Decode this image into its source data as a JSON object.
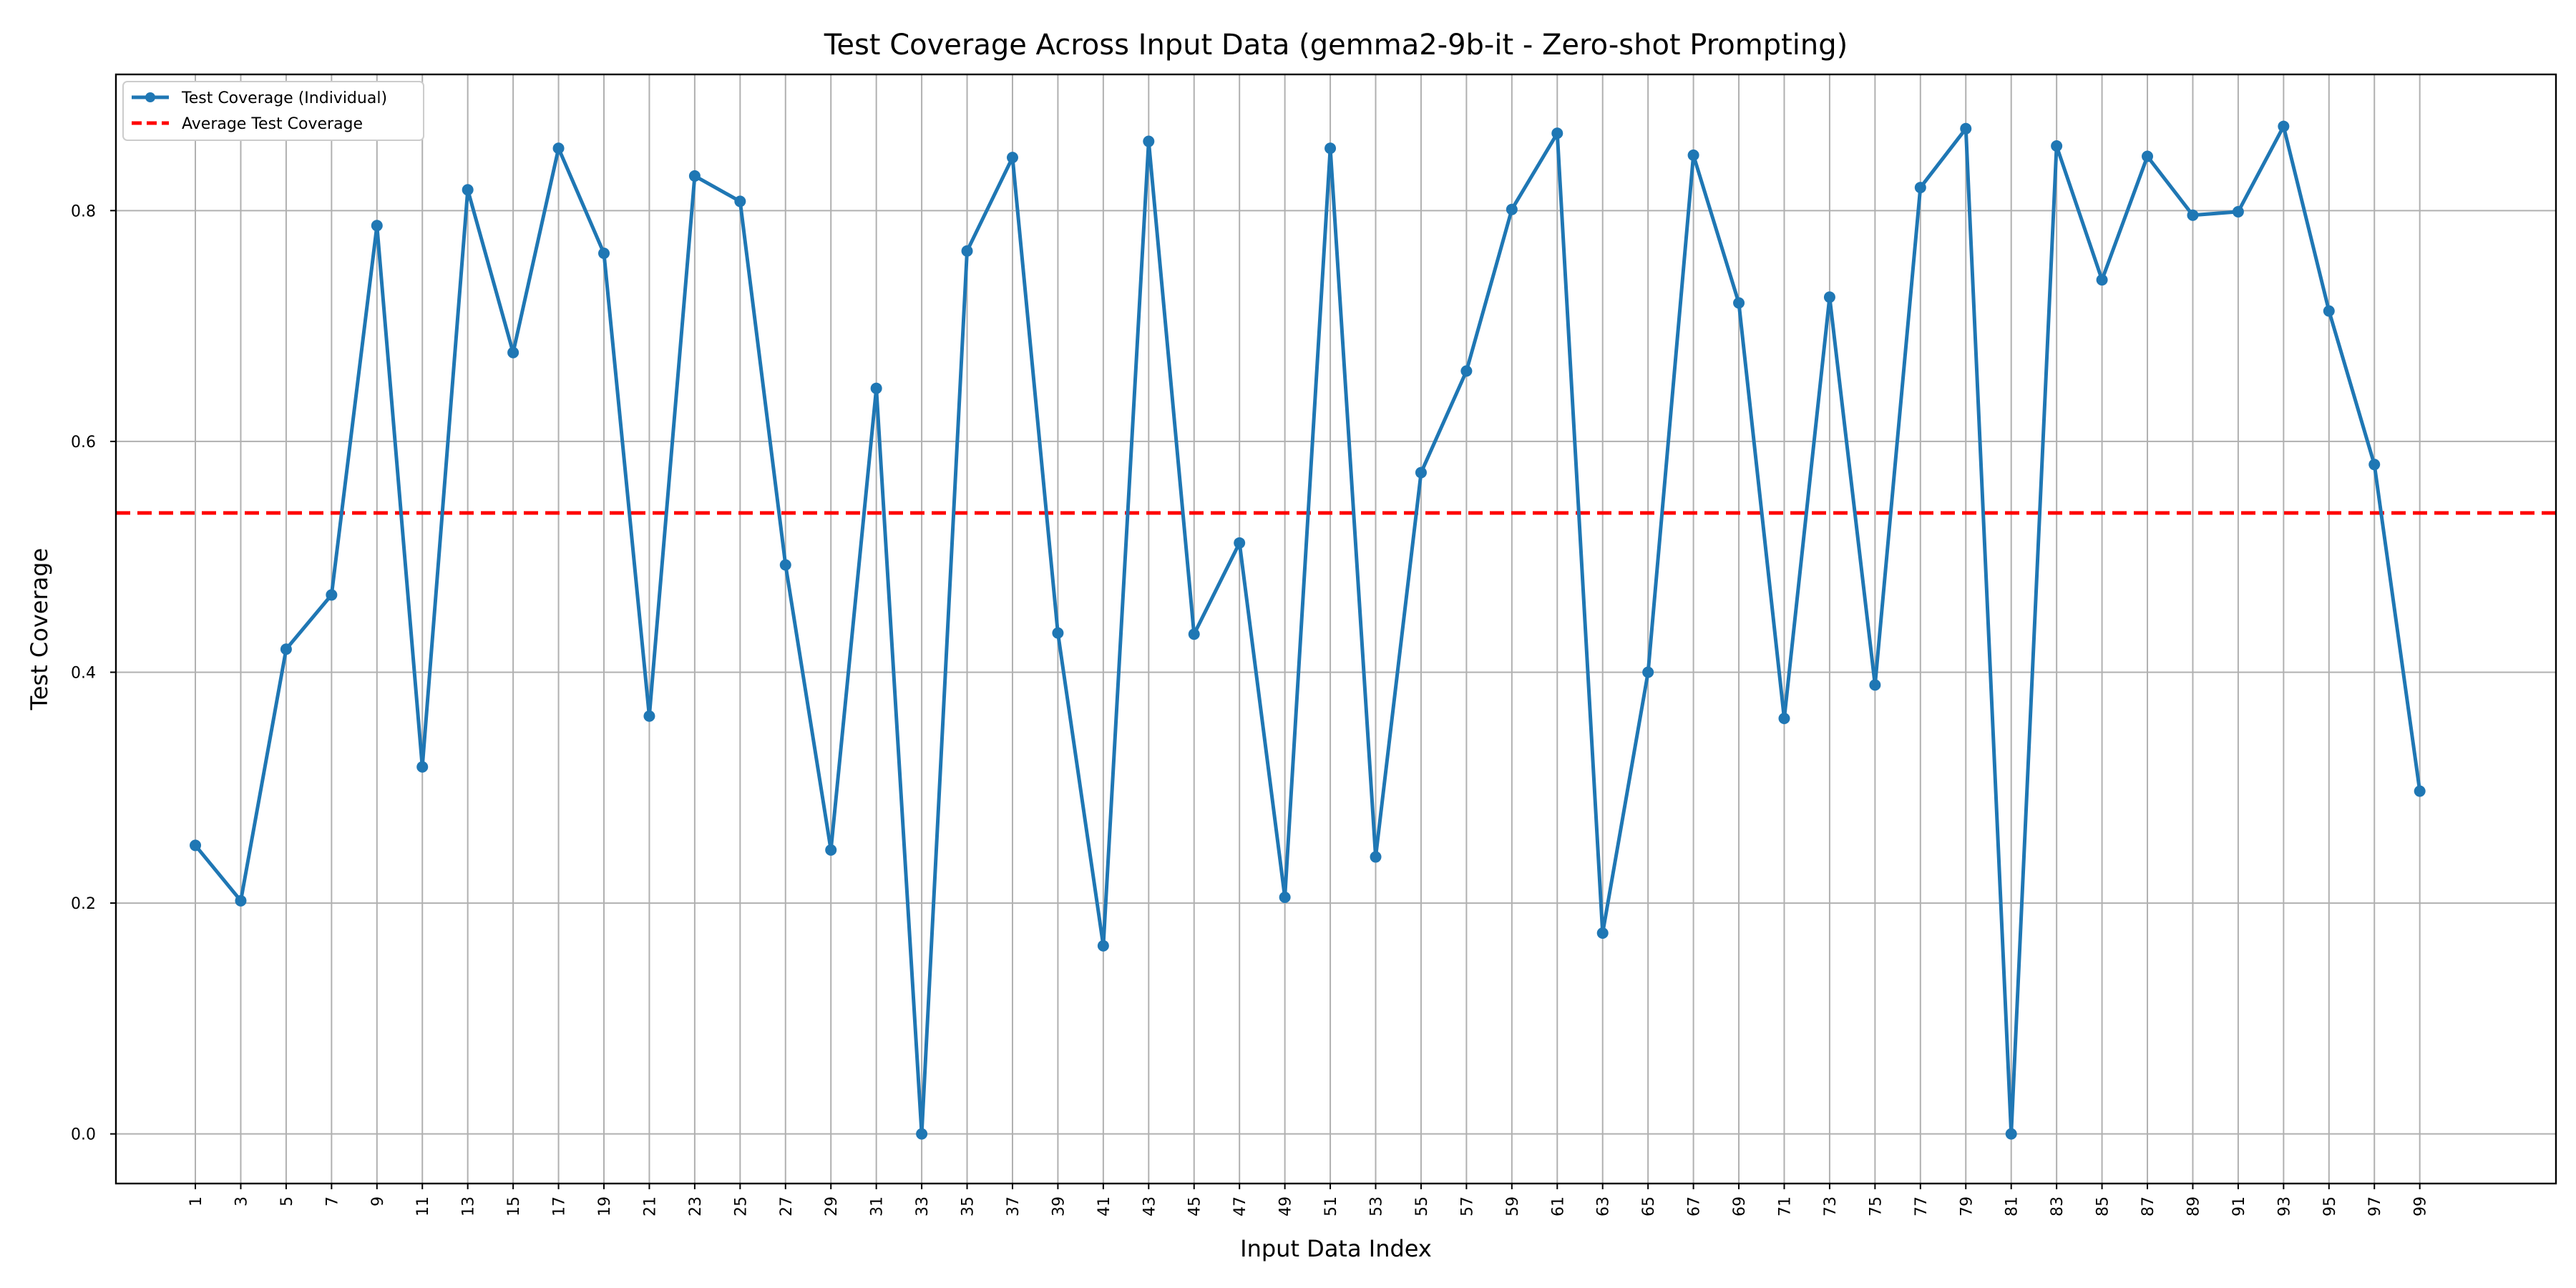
{
  "chart_data": {
    "type": "line",
    "title": "Test Coverage Across Input Data (gemma2-9b-it - Zero-shot Prompting)",
    "xlabel": "Input Data Index",
    "ylabel": "Test Coverage",
    "xlim": [
      -2.5,
      105
    ],
    "ylim": [
      -0.043,
      0.918
    ],
    "x_ticks": [
      1,
      3,
      5,
      7,
      9,
      11,
      13,
      15,
      17,
      19,
      21,
      23,
      25,
      27,
      29,
      31,
      33,
      35,
      37,
      39,
      41,
      43,
      45,
      47,
      49,
      51,
      53,
      55,
      57,
      59,
      61,
      63,
      65,
      67,
      69,
      71,
      73,
      75,
      77,
      79,
      81,
      83,
      85,
      87,
      89,
      91,
      93,
      95,
      97,
      99
    ],
    "y_ticks": [
      0.0,
      0.2,
      0.4,
      0.6,
      0.8
    ],
    "y_tick_labels": [
      "0.0",
      "0.2",
      "0.4",
      "0.6",
      "0.8"
    ],
    "grid": true,
    "legend_position": "top-left",
    "series": [
      {
        "name": "Test Coverage (Individual)",
        "color": "#1f77b4",
        "x": [
          1,
          3,
          5,
          7,
          9,
          11,
          13,
          15,
          17,
          19,
          21,
          23,
          25,
          27,
          29,
          31,
          33,
          35,
          37,
          39,
          41,
          43,
          45,
          47,
          49,
          51,
          53,
          55,
          57,
          59,
          61,
          63,
          65,
          67,
          69,
          71,
          73,
          75,
          77,
          79,
          81,
          83,
          85,
          87,
          89,
          91,
          93,
          95,
          97,
          99
        ],
        "values": [
          0.25,
          0.202,
          0.42,
          0.467,
          0.787,
          0.318,
          0.818,
          0.677,
          0.854,
          0.763,
          0.362,
          0.83,
          0.808,
          0.493,
          0.246,
          0.646,
          0.0,
          0.765,
          0.846,
          0.434,
          0.163,
          0.86,
          0.433,
          0.512,
          0.205,
          0.854,
          0.24,
          0.573,
          0.661,
          0.801,
          0.867,
          0.174,
          0.4,
          0.848,
          0.72,
          0.36,
          0.725,
          0.389,
          0.82,
          0.871,
          0.0,
          0.856,
          0.74,
          0.847,
          0.796,
          0.799,
          0.873,
          0.713,
          0.58,
          0.297
        ]
      },
      {
        "name": "Average Test Coverage",
        "color": "#ff0000",
        "value": 0.538
      }
    ]
  }
}
